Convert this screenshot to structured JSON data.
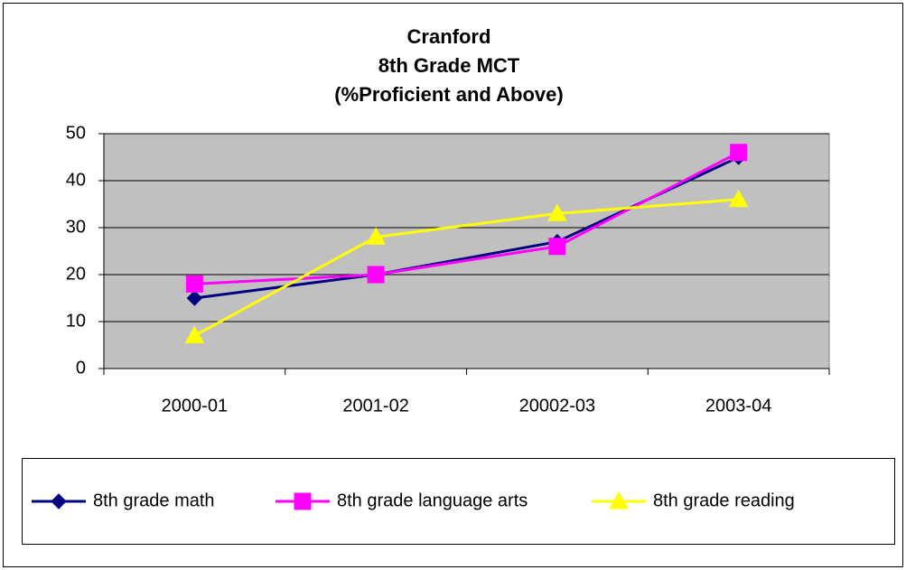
{
  "chart_data": {
    "type": "line",
    "title": [
      "Cranford",
      "8th Grade MCT",
      "(%Proficient and Above)"
    ],
    "categories": [
      "2000-01",
      "2001-02",
      "20002-03",
      "2003-04"
    ],
    "series": [
      {
        "name": "8th grade math",
        "color": "#000080",
        "marker": "diamond",
        "values": [
          15,
          20,
          27,
          45
        ]
      },
      {
        "name": "8th grade language arts",
        "color": "#ff00ff",
        "marker": "square",
        "values": [
          18,
          20,
          26,
          46
        ]
      },
      {
        "name": "8th grade reading",
        "color": "#ffff00",
        "marker": "triangle",
        "values": [
          7,
          28,
          33,
          36
        ]
      }
    ],
    "ylim": [
      0,
      50
    ],
    "yticks": [
      0,
      10,
      20,
      30,
      40,
      50
    ],
    "grid": true,
    "legend": "bottom",
    "plot_background": "#c0c0c0"
  }
}
